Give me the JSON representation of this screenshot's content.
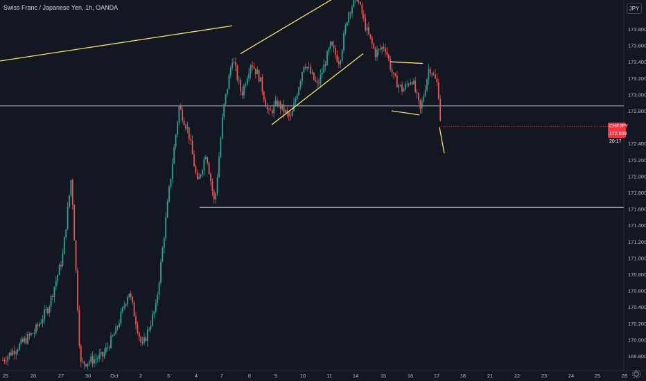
{
  "header": {
    "title": "Swiss Franc / Japanese Yen, 1h, OANDA"
  },
  "currency_button": {
    "label": "JPY"
  },
  "price_tag": {
    "symbol": "CHFJPY",
    "price": "172.609",
    "countdown": "20:17"
  },
  "colors": {
    "background": "#131722",
    "up": "#26a69a",
    "down": "#ef5350",
    "trendline": "#f7e26b",
    "level_line": "#b2b5be",
    "axis_text": "#b2b5be",
    "price_tag": "#f23645"
  },
  "chart_data": {
    "type": "candlestick",
    "title": "Swiss Franc / Japanese Yen, 1h, OANDA",
    "xlabel": "",
    "ylabel": "",
    "ylim": [
      169.7,
      174.4
    ],
    "y_ticks": [
      173.8,
      173.6,
      173.4,
      173.2,
      173.0,
      172.8,
      172.4,
      172.2,
      172.0,
      171.8,
      171.6,
      171.4,
      171.2,
      171.0,
      170.8,
      170.6,
      170.4,
      170.2,
      170.0,
      169.8
    ],
    "y_tick_labels": [
      "173.800",
      "173.600",
      "173.400",
      "173.200",
      "173.000",
      "172.800",
      "172.400",
      "172.200",
      "172.000",
      "171.800",
      "171.600",
      "171.400",
      "171.200",
      "171.000",
      "170.800",
      "170.600",
      "170.400",
      "170.200",
      "170.000",
      "169.800"
    ],
    "x_ticks": [
      "25",
      "26",
      "27",
      "30",
      "Oct",
      "2",
      "3",
      "4",
      "7",
      "8",
      "9",
      "10",
      "11",
      "14",
      "15",
      "16",
      "17",
      "18",
      "21",
      "22",
      "23",
      "24",
      "25",
      "28"
    ],
    "last_price": 172.609,
    "horizontal_levels": [
      172.86,
      171.62
    ],
    "trendlines": [
      {
        "from": [
          "25",
          173.41
        ],
        "to": [
          "8",
          173.84
        ]
      },
      {
        "from": [
          "8",
          173.5
        ],
        "to": [
          "11",
          174.23
        ]
      },
      {
        "from": [
          "9",
          172.63
        ],
        "to": [
          "14",
          173.5
        ]
      },
      {
        "from": [
          "15",
          173.4
        ],
        "to": [
          "16",
          173.38
        ]
      },
      {
        "from": [
          "15",
          172.8
        ],
        "to": [
          "16",
          172.75
        ]
      },
      {
        "from": [
          "17",
          172.6
        ],
        "to": [
          "17",
          172.28
        ]
      }
    ],
    "series": [
      {
        "keypoints": [
          [
            "25",
            169.75
          ],
          [
            "26",
            170.1
          ],
          [
            "26",
            170.4
          ],
          [
            "27",
            171.0
          ],
          [
            "27",
            172.0
          ],
          [
            "27",
            169.7
          ],
          [
            "30",
            169.8
          ],
          [
            "Oct",
            170.1
          ],
          [
            "Oct",
            170.6
          ],
          [
            "2",
            169.9
          ],
          [
            "2",
            170.4
          ],
          [
            "3",
            171.9
          ],
          [
            "3",
            172.85
          ],
          [
            "3",
            172.55
          ],
          [
            "4",
            171.9
          ],
          [
            "4",
            172.3
          ],
          [
            "4",
            171.65
          ],
          [
            "7",
            172.8
          ],
          [
            "7",
            173.45
          ],
          [
            "7",
            173.0
          ],
          [
            "8",
            173.4
          ],
          [
            "8",
            173.2
          ],
          [
            "8",
            172.75
          ],
          [
            "9",
            172.9
          ],
          [
            "9",
            172.7
          ],
          [
            "10",
            173.4
          ],
          [
            "10",
            173.1
          ],
          [
            "11",
            173.6
          ],
          [
            "11",
            173.4
          ],
          [
            "11",
            174.0
          ],
          [
            "14",
            174.2
          ],
          [
            "14",
            173.8
          ],
          [
            "14",
            173.5
          ],
          [
            "15",
            173.6
          ],
          [
            "15",
            173.2
          ],
          [
            "15",
            173.05
          ],
          [
            "16",
            173.2
          ],
          [
            "16",
            172.8
          ],
          [
            "16",
            173.35
          ],
          [
            "17",
            173.1
          ],
          [
            "17",
            172.609
          ]
        ]
      }
    ]
  }
}
